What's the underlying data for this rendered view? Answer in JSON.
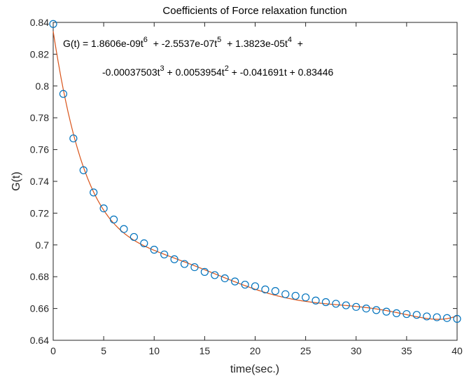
{
  "chart_data": {
    "type": "scatter",
    "title": "Coefficients of Force relaxation function",
    "xlabel": "time(sec.)",
    "ylabel": "G(t)",
    "xlim": [
      0,
      40
    ],
    "ylim": [
      0.64,
      0.84
    ],
    "xticks": [
      "0",
      "5",
      "10",
      "15",
      "20",
      "25",
      "30",
      "35",
      "40"
    ],
    "yticks": [
      "0.64",
      "0.66",
      "0.68",
      "0.7",
      "0.72",
      "0.74",
      "0.76",
      "0.78",
      "0.8",
      "0.82",
      "0.84"
    ],
    "grid": false,
    "series": [
      {
        "name": "data",
        "marker": "circle",
        "color": "#0072BD",
        "x": [
          0,
          1,
          2,
          3,
          4,
          5,
          6,
          7,
          8,
          9,
          10,
          11,
          12,
          13,
          14,
          15,
          16,
          17,
          18,
          19,
          20,
          21,
          22,
          23,
          24,
          25,
          26,
          27,
          28,
          29,
          30,
          31,
          32,
          33,
          34,
          35,
          36,
          37,
          38,
          39,
          40
        ],
        "y": [
          0.839,
          0.795,
          0.767,
          0.747,
          0.733,
          0.723,
          0.716,
          0.71,
          0.705,
          0.701,
          0.697,
          0.694,
          0.691,
          0.688,
          0.686,
          0.683,
          0.681,
          0.679,
          0.677,
          0.675,
          0.674,
          0.672,
          0.671,
          0.669,
          0.668,
          0.667,
          0.665,
          0.664,
          0.663,
          0.662,
          0.661,
          0.66,
          0.659,
          0.658,
          0.657,
          0.6565,
          0.656,
          0.655,
          0.6545,
          0.654,
          0.6535
        ]
      },
      {
        "name": "fit",
        "type": "line",
        "color": "#D95319",
        "coefficients_high_to_low": [
          1.8606e-09,
          -2.5537e-07,
          1.3823e-05,
          -0.00037503,
          0.0053954,
          -0.041691,
          0.83446
        ]
      }
    ],
    "annotation": {
      "line1": [
        {
          "t": "G(t) = 1.8606e-09t",
          "sup": "6"
        },
        {
          "t": "  + -2.5537e-07t",
          "sup": "5"
        },
        {
          "t": "  + 1.3823e-05t",
          "sup": "4"
        },
        {
          "t": "  +",
          "sup": ""
        }
      ],
      "line2": [
        {
          "t": "-0.00037503t",
          "sup": "3"
        },
        {
          "t": " + 0.0053954t",
          "sup": "2"
        },
        {
          "t": " + -0.041691t + 0.83446",
          "sup": ""
        }
      ]
    }
  }
}
